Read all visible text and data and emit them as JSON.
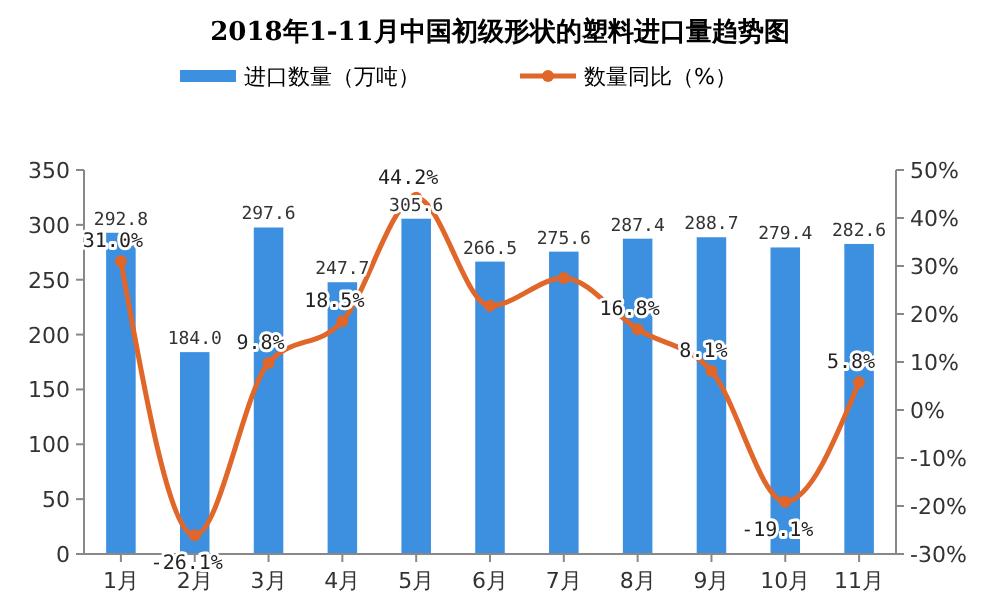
{
  "chart_data": {
    "type": "bar",
    "title": "2018年1-11月中国初级形状的塑料进口量趋势图",
    "categories": [
      "1月",
      "2月",
      "3月",
      "4月",
      "5月",
      "6月",
      "7月",
      "8月",
      "9月",
      "10月",
      "11月"
    ],
    "series": [
      {
        "name": "进口数量（万吨）",
        "color": "#3d8fe0",
        "values": [
          292.8,
          184.0,
          297.6,
          247.7,
          305.6,
          266.5,
          275.6,
          287.4,
          288.7,
          279.4,
          282.6
        ],
        "value_labels": [
          "292.8",
          "184.0",
          "297.6",
          "247.7",
          "305.6",
          "266.5",
          "275.6",
          "287.4",
          "288.7",
          "279.4",
          "282.6"
        ]
      },
      {
        "name": "数量同比（%）",
        "type": "line",
        "axis": "y2",
        "color": "#e0662a",
        "marker": "circle",
        "values": [
          31.0,
          -26.1,
          9.8,
          18.5,
          44.2,
          21.7,
          27.5,
          16.8,
          8.1,
          -19.1,
          5.8
        ],
        "value_labels": [
          "31.0%",
          "-26.1%",
          "9.8%",
          "18.5%",
          "44.2%",
          null,
          null,
          "16.8%",
          "8.1%",
          "-19.1%",
          "5.8%"
        ]
      }
    ],
    "ylim": [
      0,
      350
    ],
    "yticks": [
      0,
      50,
      100,
      150,
      200,
      250,
      300,
      350
    ],
    "y2lim": [
      -30,
      50
    ],
    "y2ticks": [
      {
        "value": -30,
        "label": "-30%"
      },
      {
        "value": -20,
        "label": "-20%"
      },
      {
        "value": -10,
        "label": "-10%"
      },
      {
        "value": 0,
        "label": "0%"
      },
      {
        "value": 10,
        "label": "10%"
      },
      {
        "value": 20,
        "label": "20%"
      },
      {
        "value": 30,
        "label": "30%"
      },
      {
        "value": 40,
        "label": "40%"
      },
      {
        "value": 50,
        "label": "50%"
      }
    ],
    "legend": "top",
    "grid": false
  }
}
